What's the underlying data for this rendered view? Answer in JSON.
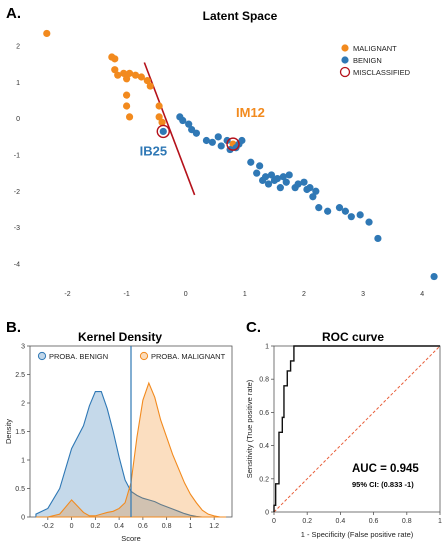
{
  "colors": {
    "malignant": "#f28a1e",
    "benign": "#2f78b5",
    "misclassified": "#b5121b",
    "boundary": "#b5121b",
    "roc": "#111111",
    "diagonal": "#e8603c"
  },
  "chart_data": [
    {
      "panel": "A.",
      "type": "scatter",
      "title": "Latent Space",
      "xlim": [
        -2.6,
        4.3
      ],
      "ylim": [
        -4.5,
        2.5
      ],
      "xticks": [
        "-2",
        "-1",
        "0",
        "1",
        "2",
        "3",
        "4"
      ],
      "yticks": [
        "2",
        "1",
        "0",
        "-1",
        "-2",
        "-3",
        "-4"
      ],
      "legend": [
        "MALIGNANT",
        "BENIGN",
        "MISCLASSIFIED"
      ],
      "legend_position": "top-right",
      "annotations": [
        "IM12",
        "IB25"
      ],
      "decision_boundary": [
        [
          -0.7,
          1.55
        ],
        [
          0.15,
          -2.1
        ]
      ],
      "series": [
        {
          "name": "MALIGNANT",
          "points": [
            [
              -2.35,
              2.35
            ],
            [
              -1.25,
              1.7
            ],
            [
              -1.2,
              1.65
            ],
            [
              -1.2,
              1.35
            ],
            [
              -1.15,
              1.2
            ],
            [
              -1.05,
              1.25
            ],
            [
              -1.0,
              1.1
            ],
            [
              -0.95,
              1.25
            ],
            [
              -0.85,
              1.2
            ],
            [
              -0.75,
              1.15
            ],
            [
              -0.65,
              1.05
            ],
            [
              -0.6,
              0.9
            ],
            [
              -1.0,
              0.65
            ],
            [
              -1.0,
              0.35
            ],
            [
              -0.95,
              0.05
            ],
            [
              -0.45,
              0.35
            ],
            [
              -0.45,
              0.05
            ],
            [
              -0.4,
              -0.1
            ],
            [
              0.8,
              -0.7
            ]
          ]
        },
        {
          "name": "BENIGN",
          "points": [
            [
              -0.38,
              -0.35
            ],
            [
              -0.1,
              0.05
            ],
            [
              -0.05,
              -0.05
            ],
            [
              0.05,
              -0.15
            ],
            [
              0.1,
              -0.3
            ],
            [
              0.18,
              -0.4
            ],
            [
              0.35,
              -0.6
            ],
            [
              0.45,
              -0.65
            ],
            [
              0.55,
              -0.5
            ],
            [
              0.6,
              -0.75
            ],
            [
              0.7,
              -0.6
            ],
            [
              0.75,
              -0.85
            ],
            [
              0.85,
              -0.8
            ],
            [
              0.9,
              -0.7
            ],
            [
              0.95,
              -0.6
            ],
            [
              1.1,
              -1.2
            ],
            [
              1.2,
              -1.5
            ],
            [
              1.25,
              -1.3
            ],
            [
              1.35,
              -1.6
            ],
            [
              1.4,
              -1.8
            ],
            [
              1.45,
              -1.55
            ],
            [
              1.5,
              -1.7
            ],
            [
              1.55,
              -1.65
            ],
            [
              1.6,
              -1.9
            ],
            [
              1.65,
              -1.6
            ],
            [
              1.7,
              -1.75
            ],
            [
              1.75,
              -1.55
            ],
            [
              1.85,
              -1.9
            ],
            [
              1.9,
              -1.8
            ],
            [
              2.0,
              -1.75
            ],
            [
              2.05,
              -1.95
            ],
            [
              2.1,
              -1.9
            ],
            [
              2.15,
              -2.15
            ],
            [
              2.2,
              -2.0
            ],
            [
              2.25,
              -2.45
            ],
            [
              2.4,
              -2.55
            ],
            [
              2.6,
              -2.45
            ],
            [
              2.7,
              -2.55
            ],
            [
              2.8,
              -2.7
            ],
            [
              2.95,
              -2.65
            ],
            [
              3.1,
              -2.85
            ],
            [
              3.25,
              -3.3
            ],
            [
              4.2,
              -4.35
            ],
            [
              1.3,
              -1.7
            ]
          ]
        }
      ],
      "misclassified": [
        [
          -0.38,
          -0.35
        ],
        [
          0.8,
          -0.7
        ]
      ]
    },
    {
      "panel": "B.",
      "type": "area",
      "title": "Kernel Density",
      "xlabel": "Score",
      "ylabel": "Density",
      "xlim": [
        -0.35,
        1.35
      ],
      "ylim": [
        0,
        3
      ],
      "xticks": [
        "-0.2",
        "0",
        "0.2",
        "0.4",
        "0.6",
        "0.8",
        "1",
        "1.2"
      ],
      "yticks": [
        "0",
        "0.5",
        "1",
        "1.5",
        "2",
        "2.5",
        "3"
      ],
      "threshold": 0.5,
      "legend_position": "top",
      "x": [
        -0.3,
        -0.2,
        -0.1,
        0.0,
        0.1,
        0.15,
        0.2,
        0.25,
        0.3,
        0.35,
        0.4,
        0.45,
        0.5,
        0.55,
        0.6,
        0.65,
        0.7,
        0.75,
        0.8,
        0.85,
        0.9,
        0.95,
        1.0,
        1.05,
        1.1,
        1.15,
        1.2,
        1.25,
        1.3
      ],
      "series": [
        {
          "name": "PROBA. BENIGN",
          "values": [
            0.05,
            0.15,
            0.5,
            1.2,
            1.6,
            1.95,
            2.2,
            2.2,
            1.9,
            1.5,
            1.05,
            0.65,
            0.45,
            0.38,
            0.33,
            0.3,
            0.27,
            0.22,
            0.18,
            0.14,
            0.1,
            0.06,
            0.03,
            0.01,
            0.0,
            0.0,
            0.0,
            0.0,
            0.0
          ]
        },
        {
          "name": "PROBA. MALIGNANT",
          "values": [
            0.0,
            0.0,
            0.05,
            0.3,
            0.08,
            0.02,
            0.02,
            0.05,
            0.08,
            0.1,
            0.15,
            0.25,
            0.6,
            1.4,
            2.05,
            2.35,
            2.1,
            1.7,
            1.4,
            1.1,
            0.85,
            0.6,
            0.4,
            0.25,
            0.12,
            0.05,
            0.02,
            0.0,
            0.0
          ]
        }
      ]
    },
    {
      "panel": "C.",
      "type": "line",
      "title": "ROC curve",
      "xlabel": "1 - Specificity (False positive rate)",
      "ylabel": "Sensitivity (True positive rate)",
      "xlim": [
        0,
        1
      ],
      "ylim": [
        0,
        1
      ],
      "xticks": [
        "0",
        "0.2",
        "0.4",
        "0.6",
        "0.8",
        "1"
      ],
      "yticks": [
        "0",
        "0.2",
        "0.4",
        "0.6",
        "0.8",
        "1"
      ],
      "auc_label": "AUC = 0.945",
      "ci_label": "95% CI: (0.833 -1)",
      "series": [
        {
          "fpr": [
            0,
            0,
            0.01,
            0.01,
            0.03,
            0.03,
            0.05,
            0.05,
            0.06,
            0.06,
            0.08,
            0.08,
            0.1,
            0.1,
            0.12,
            0.12,
            1.0
          ],
          "tpr": [
            0,
            0.04,
            0.04,
            0.17,
            0.17,
            0.48,
            0.48,
            0.57,
            0.57,
            0.76,
            0.76,
            0.85,
            0.85,
            0.91,
            0.91,
            1.0,
            1.0
          ]
        }
      ]
    }
  ]
}
